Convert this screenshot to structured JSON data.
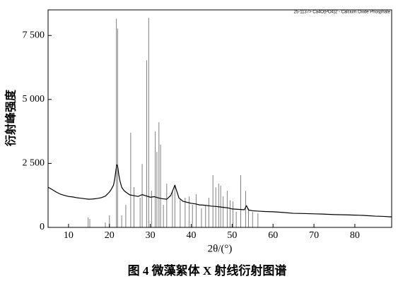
{
  "chart_data": {
    "type": "line",
    "annotation": "25-1137> Ca4O(PO4)2 - Calcium Oxide Phosphate",
    "x_label": "2θ/(°)",
    "y_label": "衍射峰强度",
    "xlim": [
      5,
      89
    ],
    "xticks": [
      10,
      20,
      30,
      40,
      50,
      60,
      70,
      80
    ],
    "ylim": [
      0,
      8500
    ],
    "yticks": [
      0,
      {
        "value": 2500,
        "label": "2 500"
      },
      {
        "value": 5000,
        "label": "5 000"
      },
      {
        "value": 7500,
        "label": "7 500"
      }
    ],
    "series": [
      {
        "type": "line",
        "color": "#000000",
        "x": [
          5,
          6,
          7,
          8,
          9,
          10,
          11,
          12,
          13,
          14,
          15,
          16,
          17,
          18,
          19,
          20,
          20.5,
          21,
          21.3,
          21.6,
          21.8,
          22,
          22.3,
          22.6,
          23,
          23.5,
          24,
          25,
          26,
          27,
          28,
          29,
          30,
          31,
          32,
          33,
          34,
          35,
          35.5,
          36,
          36.5,
          37,
          38,
          39,
          40,
          41,
          42,
          43,
          44,
          45,
          46,
          47,
          48,
          49,
          50,
          51,
          52,
          53,
          53.5,
          54,
          55,
          56,
          57,
          58,
          60,
          62,
          65,
          68,
          70,
          72,
          75,
          78,
          80,
          82,
          85,
          87,
          89
        ],
        "values": [
          1570,
          1480,
          1380,
          1300,
          1250,
          1210,
          1190,
          1160,
          1140,
          1120,
          1100,
          1110,
          1130,
          1160,
          1220,
          1380,
          1500,
          1650,
          1900,
          2250,
          2450,
          2400,
          2050,
          1800,
          1570,
          1450,
          1380,
          1270,
          1240,
          1210,
          1280,
          1230,
          1180,
          1200,
          1150,
          1120,
          1100,
          1250,
          1450,
          1650,
          1400,
          1150,
          1020,
          980,
          940,
          920,
          880,
          870,
          850,
          830,
          820,
          800,
          780,
          760,
          720,
          710,
          700,
          690,
          850,
          680,
          650,
          640,
          630,
          620,
          610,
          590,
          550,
          540,
          530,
          520,
          500,
          490,
          480,
          470,
          440,
          430,
          410
        ]
      },
      {
        "type": "stick",
        "color": "#808080",
        "x": [
          14.8,
          15.2,
          19,
          20,
          21.7,
          22,
          23,
          24,
          25.2,
          26,
          27.5,
          28,
          29.1,
          29.6,
          30.3,
          31.2,
          31.6,
          32.1,
          32.5,
          33.2,
          34,
          35.4,
          36,
          37.3,
          38.5,
          39.5,
          40.3,
          41.2,
          42.5,
          43.5,
          44.3,
          45.3,
          46,
          46.7,
          47.2,
          47.8,
          48.8,
          49.5,
          50.2,
          51,
          52.1,
          53.3,
          54,
          55,
          56.3
        ],
        "values": [
          390,
          330,
          190,
          470,
          8160,
          7770,
          470,
          880,
          3700,
          1570,
          1160,
          2480,
          6530,
          8190,
          1430,
          3750,
          2950,
          4110,
          3230,
          880,
          1710,
          1430,
          1650,
          1100,
          1160,
          1210,
          880,
          1300,
          740,
          880,
          1160,
          2040,
          1570,
          1710,
          1630,
          1210,
          1430,
          1060,
          1020,
          610,
          2040,
          1430,
          740,
          610,
          550
        ]
      }
    ]
  },
  "caption": "图 4   微藻絮体 X 射线衍射图谱"
}
